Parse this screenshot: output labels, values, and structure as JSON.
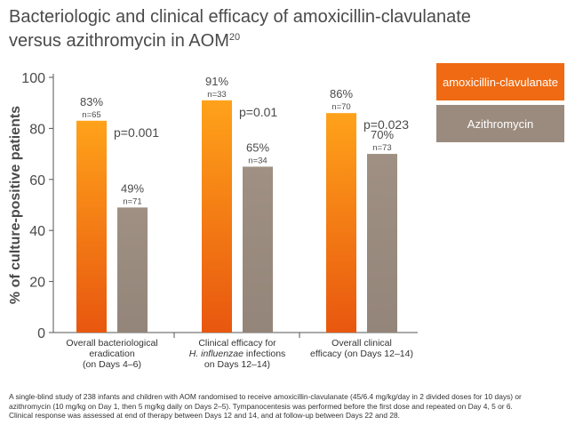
{
  "title": "Bacteriologic and clinical efficacy of amoxicillin-clavulanate versus azithromycin in AOM",
  "title_sup": "20",
  "colors": {
    "amoxicillin": "#ef6a12",
    "azithromycin": "#9b8b7e",
    "axis": "#555555",
    "text": "#4a4a4a"
  },
  "chart_data": {
    "type": "bar",
    "ylabel": "% of culture-positive patients",
    "ylim": [
      0,
      100
    ],
    "yticks": [
      "0",
      "20",
      "40",
      "60",
      "80",
      "100"
    ],
    "categories": [
      [
        "Overall bacteriological",
        "eradication",
        "(on Days 4–6)"
      ],
      [
        "Clinical efficacy for",
        "H. influenzae infections",
        "on Days 12–14)"
      ],
      [
        "Overall clinical",
        "efficacy (on Days 12–14)"
      ]
    ],
    "series": [
      {
        "name": "amoxicillin-clavulanate",
        "values": [
          83,
          91,
          86
        ],
        "labels": [
          "83%",
          "91%",
          "86%"
        ],
        "n": [
          "n=65",
          "n=33",
          "n=70"
        ]
      },
      {
        "name": "Azithromycin",
        "values": [
          49,
          65,
          70
        ],
        "labels": [
          "49%",
          "65%",
          "70%"
        ],
        "n": [
          "n=71",
          "n=34",
          "n=73"
        ]
      }
    ],
    "pvalues": [
      "p=0.001",
      "p=0.01",
      "p=0.023"
    ],
    "legend": "right",
    "grid": false
  },
  "footnote": [
    "A single-blind study of 238 infants and children with AOM randomised to receive amoxicillin-clavulanate (45/6.4 mg/kg/day in 2 divided doses for 10 days) or",
    "azithromycin (10 mg/kg on Day 1, then 5 mg/kg daily on Days 2–5). Tympanocentesis was performed before the first dose and repeated on Day 4, 5 or 6.",
    "Clinical response was assessed at end of therapy between Days 12 and 14, and at follow-up between Days 22 and 28."
  ]
}
